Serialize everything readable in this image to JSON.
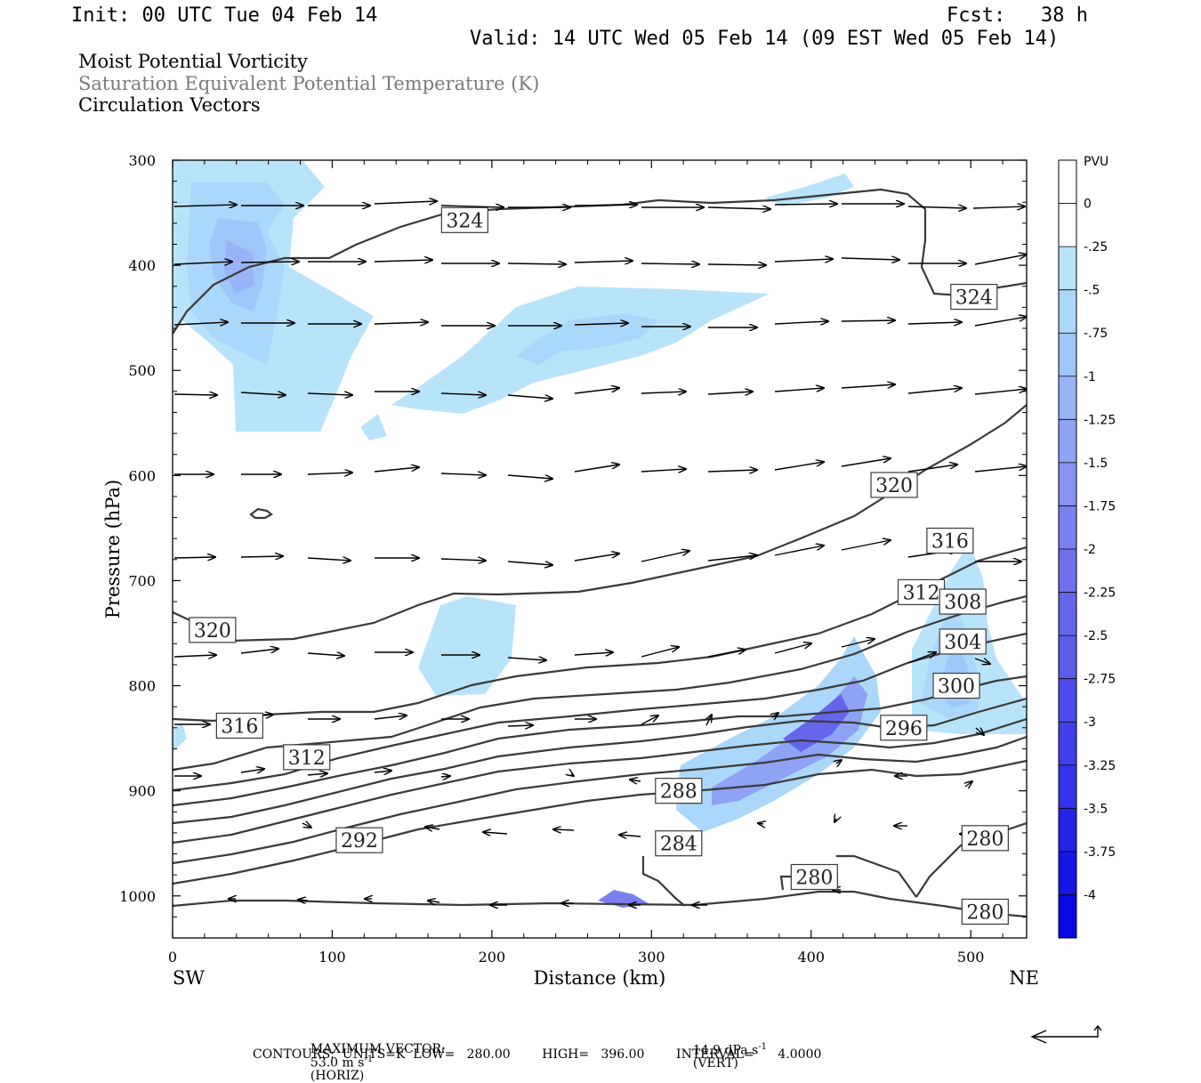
{
  "header": {
    "init": "Init: 00 UTC Tue 04 Feb 14",
    "fcst": "Fcst:   38 h",
    "valid": "Valid: 14 UTC Wed 05 Feb 14 (09 EST Wed 05 Feb 14)"
  },
  "legend": {
    "line1": "Moist Potential Vorticity",
    "line2": "Saturation Equivalent Potential Temperature (K)",
    "line3": "Circulation Vectors"
  },
  "footer": {
    "max_vector_label": "MAXIMUM VECTOR:",
    "horiz_value": "53.0 m s",
    "horiz_unit": "(HORIZ)",
    "vert_value": "14.9 dPa s",
    "vert_unit": "(VERT)",
    "exponent": "-1",
    "contours": "CONTOURS:  UNITS=K  LOW=   280.00        HIGH=   396.00        INTERVAL=      4.0000"
  },
  "colors": {
    "contour": "#3a3a3a",
    "pv_shades": [
      "#ffffff",
      "#ffffff",
      "#b8e4fb",
      "#aad7fa",
      "#9fc6f8",
      "#97b5f6",
      "#8ea3f4",
      "#8693f2",
      "#7b80f0",
      "#7070ef",
      "#6666ed",
      "#5b5cec",
      "#4f4ceb",
      "#4240ea",
      "#3334e9",
      "#2424e8",
      "#1515e8",
      "#0808e6"
    ]
  },
  "chart_data": {
    "type": "cross-section",
    "xlabel": "Distance (km)",
    "ylabel": "Pressure (hPa)",
    "xlim": [
      0,
      535
    ],
    "ylim": [
      1040,
      300
    ],
    "x_ticks": [
      0,
      100,
      200,
      300,
      400,
      500
    ],
    "y_ticks": [
      300,
      400,
      500,
      600,
      700,
      800,
      900,
      1000
    ],
    "x_end_labels": [
      "SW",
      "NE"
    ],
    "colorbar": {
      "unit": "PVU",
      "labels": [
        "0",
        "-.25",
        "-.5",
        "-.75",
        "-1",
        "-1.25",
        "-1.5",
        "-1.75",
        "-2",
        "-2.25",
        "-2.5",
        "-2.75",
        "-3",
        "-3.25",
        "-3.5",
        "-3.75",
        "-4"
      ]
    },
    "contour_labels": [
      {
        "text": "324",
        "x": 183,
        "p": 357
      },
      {
        "text": "324",
        "x": 502,
        "p": 430
      },
      {
        "text": "320",
        "x": 452,
        "p": 609
      },
      {
        "text": "320",
        "x": 25,
        "p": 747
      },
      {
        "text": "316",
        "x": 487,
        "p": 662
      },
      {
        "text": "316",
        "x": 42,
        "p": 838
      },
      {
        "text": "312",
        "x": 469,
        "p": 711
      },
      {
        "text": "312",
        "x": 84,
        "p": 868
      },
      {
        "text": "308",
        "x": 495,
        "p": 720
      },
      {
        "text": "304",
        "x": 495,
        "p": 758
      },
      {
        "text": "300",
        "x": 491,
        "p": 800
      },
      {
        "text": "296",
        "x": 458,
        "p": 840
      },
      {
        "text": "292",
        "x": 117,
        "p": 947
      },
      {
        "text": "288",
        "x": 317,
        "p": 900
      },
      {
        "text": "284",
        "x": 317,
        "p": 950
      },
      {
        "text": "280",
        "x": 402,
        "p": 982
      },
      {
        "text": "280",
        "x": 509,
        "p": 945
      },
      {
        "text": "280",
        "x": 509,
        "p": 1015
      }
    ]
  }
}
